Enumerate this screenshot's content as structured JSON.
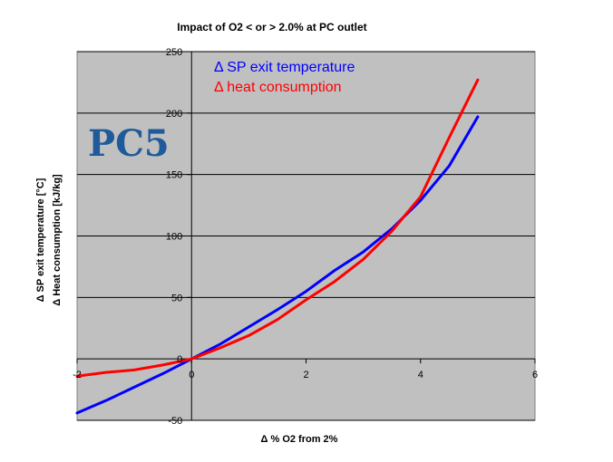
{
  "chart_data": {
    "type": "line",
    "title": "Impact of O2 < or > 2.0% at PC outlet",
    "xlabel": "Δ  % O2 from 2%",
    "ylabel_lines": [
      "Δ SP exit temperature [°C]",
      "Δ Heat consumption [kJ/kg]"
    ],
    "watermark": "PC5",
    "xlim": [
      -2,
      6
    ],
    "ylim": [
      -50,
      250
    ],
    "x_ticks": [
      -2,
      0,
      2,
      4,
      6
    ],
    "x_tick_labels": [
      "-2",
      "0",
      "2",
      "4",
      "6"
    ],
    "y_ticks": [
      -50,
      0,
      50,
      100,
      150,
      200,
      250
    ],
    "y_tick_labels": [
      "-50",
      "0",
      "50",
      "100",
      "150",
      "200",
      "250"
    ],
    "grid": "horizontal",
    "legend_position": "top-left",
    "plot_background": "#c0c0c0",
    "series": [
      {
        "name": "Δ SP exit temperature",
        "color": "#0000ff",
        "x": [
          -2,
          -1.5,
          -1,
          -0.5,
          0,
          0.5,
          1,
          1.5,
          2,
          2.5,
          3,
          3.5,
          4,
          4.5,
          5
        ],
        "y": [
          -44,
          -34,
          -23,
          -12,
          0,
          12,
          26,
          40,
          55,
          72,
          87,
          106,
          129,
          157,
          197
        ]
      },
      {
        "name": "Δ heat consumption",
        "color": "#ff0000",
        "x": [
          -2,
          -1.5,
          -1,
          -0.5,
          0,
          0.5,
          1,
          1.5,
          2,
          2.5,
          3,
          3.5,
          4,
          4.5,
          5
        ],
        "y": [
          -14,
          -11,
          -9,
          -5,
          0,
          9,
          19,
          32,
          48,
          63,
          81,
          104,
          132,
          180,
          227
        ]
      }
    ]
  }
}
